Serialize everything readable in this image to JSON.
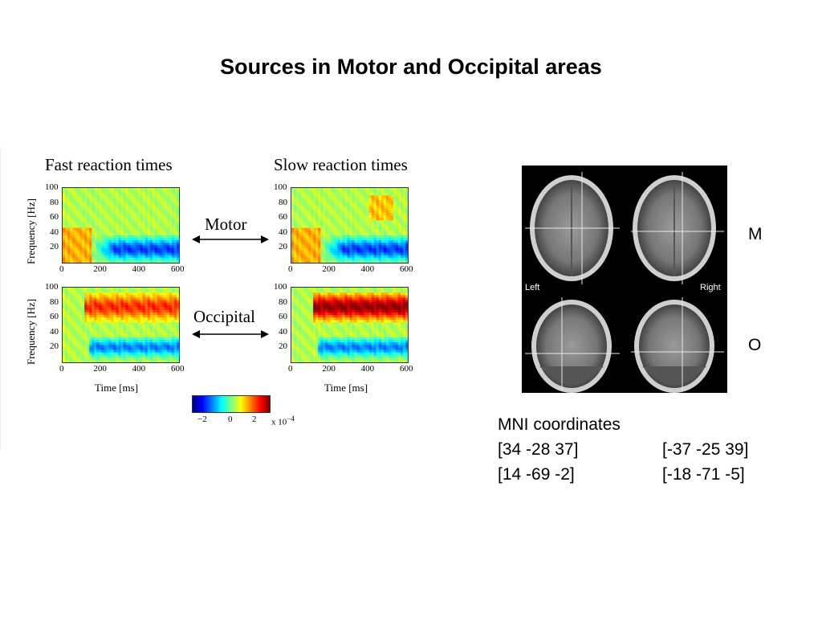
{
  "slide": {
    "title": "Sources in Motor and Occipital areas"
  },
  "figure": {
    "col_titles": [
      "Fast reaction times",
      "Slow reaction times"
    ],
    "row_labels": [
      "Motor",
      "Occipital"
    ],
    "ylabel": "Frequency [Hz]",
    "xlabel": "Time [ms]",
    "y_ticks": [
      "100",
      "80",
      "60",
      "40",
      "20"
    ],
    "x_ticks": [
      "0",
      "200",
      "400",
      "600"
    ],
    "colorbar_ticks": [
      "−2",
      "0",
      "2"
    ],
    "colorbar_unit": "x 10",
    "colorbar_exp": "−4"
  },
  "chart_data": [
    {
      "type": "heatmap",
      "panel": "Fast reaction times / Motor",
      "xlim": [
        0,
        600
      ],
      "ylim": [
        0,
        100
      ],
      "clim": [
        -3,
        3
      ]
    },
    {
      "type": "heatmap",
      "panel": "Slow reaction times / Motor",
      "xlim": [
        0,
        600
      ],
      "ylim": [
        0,
        100
      ],
      "clim": [
        -3,
        3
      ]
    },
    {
      "type": "heatmap",
      "panel": "Fast reaction times / Occipital",
      "xlim": [
        0,
        600
      ],
      "ylim": [
        0,
        100
      ],
      "clim": [
        -3,
        3
      ]
    },
    {
      "type": "heatmap",
      "panel": "Slow reaction times / Occipital",
      "xlim": [
        0,
        600
      ],
      "ylim": [
        0,
        100
      ],
      "clim": [
        -3,
        3
      ]
    }
  ],
  "brain": {
    "left_label": "Left",
    "right_label": "Right",
    "row_letters": [
      "M",
      "O"
    ]
  },
  "coordinates": {
    "heading": "MNI coordinates",
    "rows": [
      [
        "[34 -28 37]",
        "[-37 -25 39]"
      ],
      [
        "[14 -69 -2]",
        "[-18 -71 -5]"
      ]
    ]
  }
}
